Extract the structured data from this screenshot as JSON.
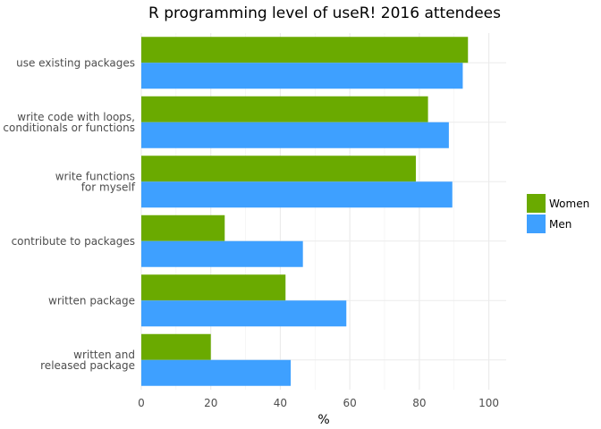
{
  "chart_data": {
    "type": "bar",
    "orientation": "horizontal",
    "title": "R programming level of useR! 2016 attendees",
    "xlabel": "%",
    "ylabel": "",
    "xlim": [
      0,
      105
    ],
    "xticks": [
      0,
      20,
      40,
      60,
      80,
      100
    ],
    "grid": true,
    "legend_position": "right",
    "categories": [
      [
        "use existing packages"
      ],
      [
        "write code with loops,",
        "conditionals or functions"
      ],
      [
        "write functions",
        "for myself"
      ],
      [
        "contribute to packages"
      ],
      [
        "written package"
      ],
      [
        "written and",
        "released package"
      ]
    ],
    "series": [
      {
        "name": "Women",
        "color": "#6aaa00",
        "values": [
          94,
          82.5,
          79,
          24,
          41.5,
          20
        ]
      },
      {
        "name": "Men",
        "color": "#3ea0ff",
        "values": [
          92.5,
          88.5,
          89.5,
          46.5,
          59,
          43
        ]
      }
    ]
  }
}
